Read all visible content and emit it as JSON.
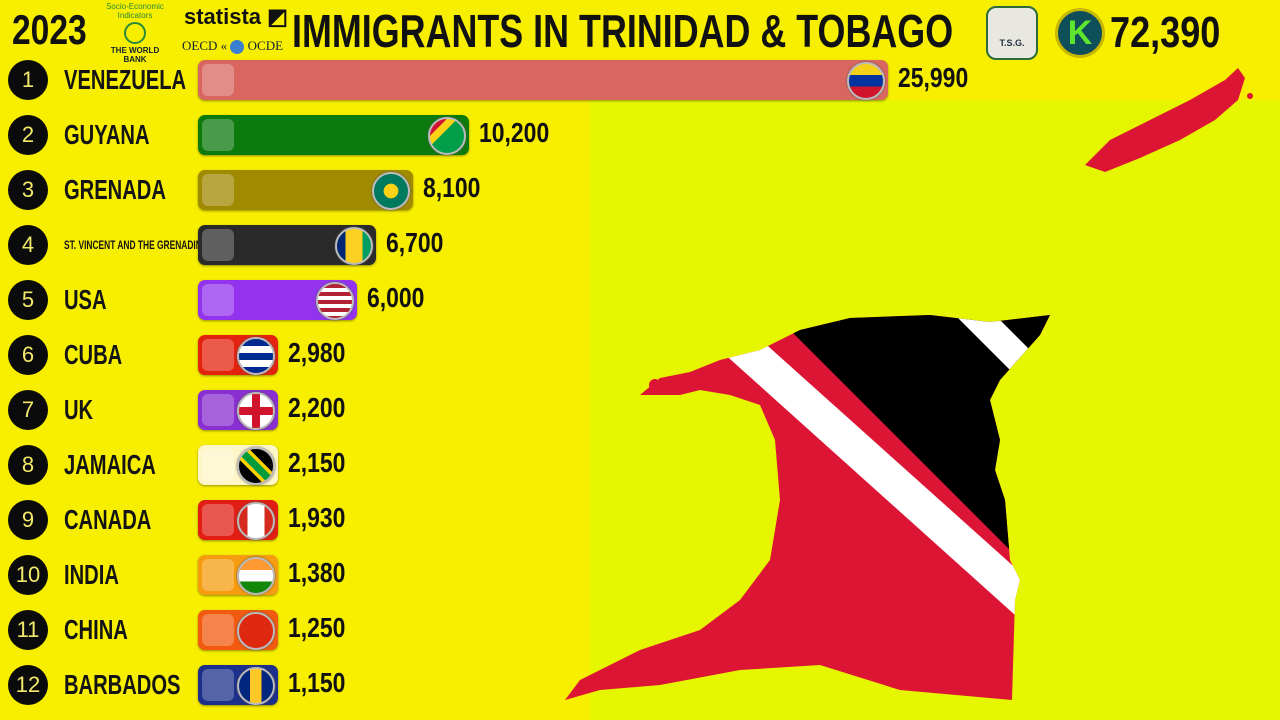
{
  "header": {
    "year": "2023",
    "title": "IMMIGRANTS IN TRINIDAD & TOBAGO",
    "total": "72,390",
    "sources": {
      "world_bank_top": "Socio-Economic Indicators",
      "world_bank_name": "THE WORLD BANK",
      "statista": "statista",
      "oecd_left": "OECD",
      "oecd_right": "OCDE"
    },
    "badge_tsg": "T.S.G.",
    "badge_k": "K"
  },
  "chart_data": {
    "type": "bar",
    "orientation": "horizontal",
    "title": "IMMIGRANTS IN TRINIDAD & TOBAGO",
    "year": "2023",
    "categories": [
      "VENEZUELA",
      "GUYANA",
      "GRENADA",
      "ST. VINCENT AND THE GRENADINES",
      "USA",
      "CUBA",
      "UK",
      "JAMAICA",
      "CANADA",
      "INDIA",
      "CHINA",
      "BARBADOS"
    ],
    "values": [
      25990,
      10200,
      8100,
      6700,
      6000,
      2980,
      2200,
      2150,
      1930,
      1380,
      1250,
      1150
    ],
    "value_labels": [
      "25,990",
      "10,200",
      "8,100",
      "6,700",
      "6,000",
      "2,980",
      "2,200",
      "2,150",
      "1,930",
      "1,380",
      "1,250",
      "1,150"
    ],
    "ranks": [
      "1",
      "2",
      "3",
      "4",
      "5",
      "6",
      "7",
      "8",
      "9",
      "10",
      "11",
      "12"
    ],
    "bar_colors": [
      "#d9675f",
      "#0d7a0d",
      "#a08a00",
      "#2a2a2a",
      "#9433ee",
      "#e4230f",
      "#8a2fd1",
      "#fff6c8",
      "#e21e14",
      "#f59c10",
      "#f25a10",
      "#1c2f8a"
    ],
    "flag_icons": [
      "venezuela-flag",
      "guyana-flag",
      "grenada-flag",
      "saint-vincent-flag",
      "usa-flag",
      "cuba-flag",
      "uk-flag",
      "jamaica-flag",
      "canada-flag",
      "india-flag",
      "china-flag",
      "barbados-flag"
    ],
    "grid": false
  },
  "colors": {
    "background": "#f7ee00",
    "map_red": "#dc1535",
    "map_black": "#000000",
    "map_white": "#ffffff"
  }
}
